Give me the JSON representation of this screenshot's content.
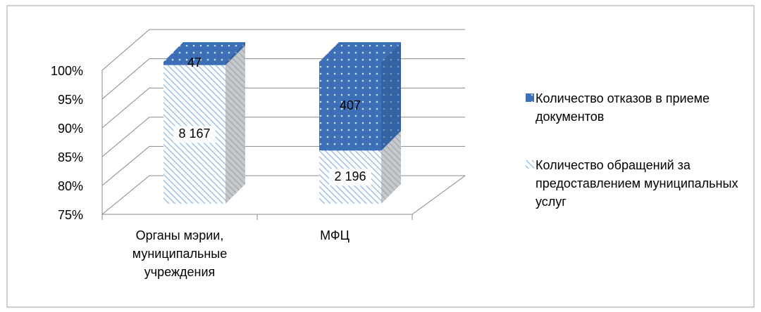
{
  "chart_data": {
    "type": "bar",
    "stacking": "percent",
    "categories": [
      "Органы мэрии, муниципальные учреждения",
      "МФЦ"
    ],
    "series": [
      {
        "name": "Количество обращений за предоставлением муниципальных услуг",
        "color": "#9dc3e6",
        "values": [
          8167,
          2196
        ],
        "value_labels": [
          "8 167",
          "2 196"
        ]
      },
      {
        "name": "Количество отказов в приеме документов",
        "color": "#3c6fb5",
        "values": [
          47,
          407
        ]
      }
    ],
    "ylim": [
      75,
      100
    ],
    "yticks": [
      {
        "value": 75,
        "label": "75%"
      },
      {
        "value": 80,
        "label": "80%"
      },
      {
        "value": 85,
        "label": "85%"
      },
      {
        "value": 90,
        "label": "90%"
      },
      {
        "value": 95,
        "label": "95%"
      },
      {
        "value": 100,
        "label": "100%"
      }
    ],
    "grid": true
  }
}
